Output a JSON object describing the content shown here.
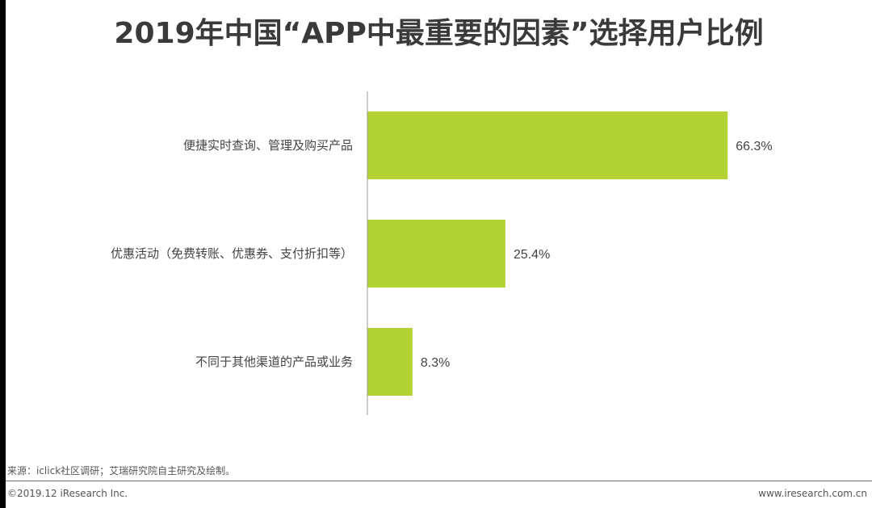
{
  "title": "2019年中国“APP中最重要的因素”选择用户比例",
  "chart_data": {
    "type": "bar",
    "orientation": "horizontal",
    "categories": [
      "便捷实时查询、管理及购买产品",
      "优惠活动（免费转账、优惠券、支付折扣等）",
      "不同于其他渠道的产品或业务"
    ],
    "values": [
      66.3,
      25.4,
      8.3
    ],
    "value_labels": [
      "66.3%",
      "25.4%",
      "8.3%"
    ],
    "unit": "%",
    "xlim": [
      0,
      100
    ],
    "grid": false,
    "bar_color": "#b3d335"
  },
  "source": "来源：iclick社区调研；艾瑞研究院自主研究及绘制。",
  "footer": {
    "copyright": "©2019.12 iResearch Inc.",
    "website": "www.iresearch.com.cn"
  }
}
